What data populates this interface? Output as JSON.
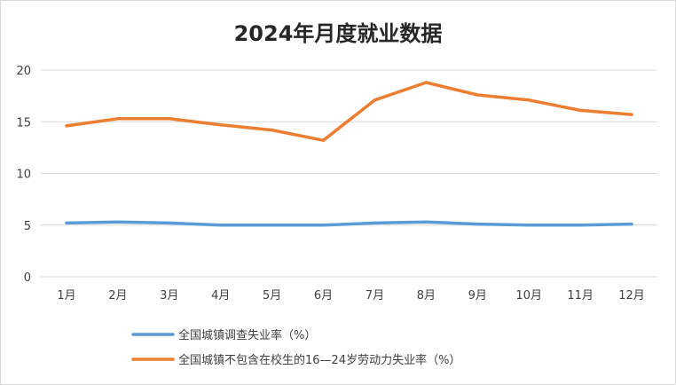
{
  "chart_data": {
    "type": "line",
    "title": "2024年月度就业数据",
    "categories": [
      "1月",
      "2月",
      "3月",
      "4月",
      "5月",
      "6月",
      "7月",
      "8月",
      "9月",
      "10月",
      "11月",
      "12月"
    ],
    "ylim": [
      0,
      20
    ],
    "yticks": [
      0,
      5,
      10,
      15,
      20
    ],
    "grid": true,
    "legend_position": "bottom",
    "series": [
      {
        "name": "全国城镇调查失业率（%）",
        "color": "#5b9bd5",
        "values": [
          5.2,
          5.3,
          5.2,
          5.0,
          5.0,
          5.0,
          5.2,
          5.3,
          5.1,
          5.0,
          5.0,
          5.1
        ]
      },
      {
        "name": "全国城镇不包含在校生的16—24岁劳动力失业率（%）",
        "color": "#ed7d31",
        "values": [
          14.6,
          15.3,
          15.3,
          14.7,
          14.2,
          13.2,
          17.1,
          18.8,
          17.6,
          17.1,
          16.1,
          15.7
        ]
      }
    ]
  }
}
